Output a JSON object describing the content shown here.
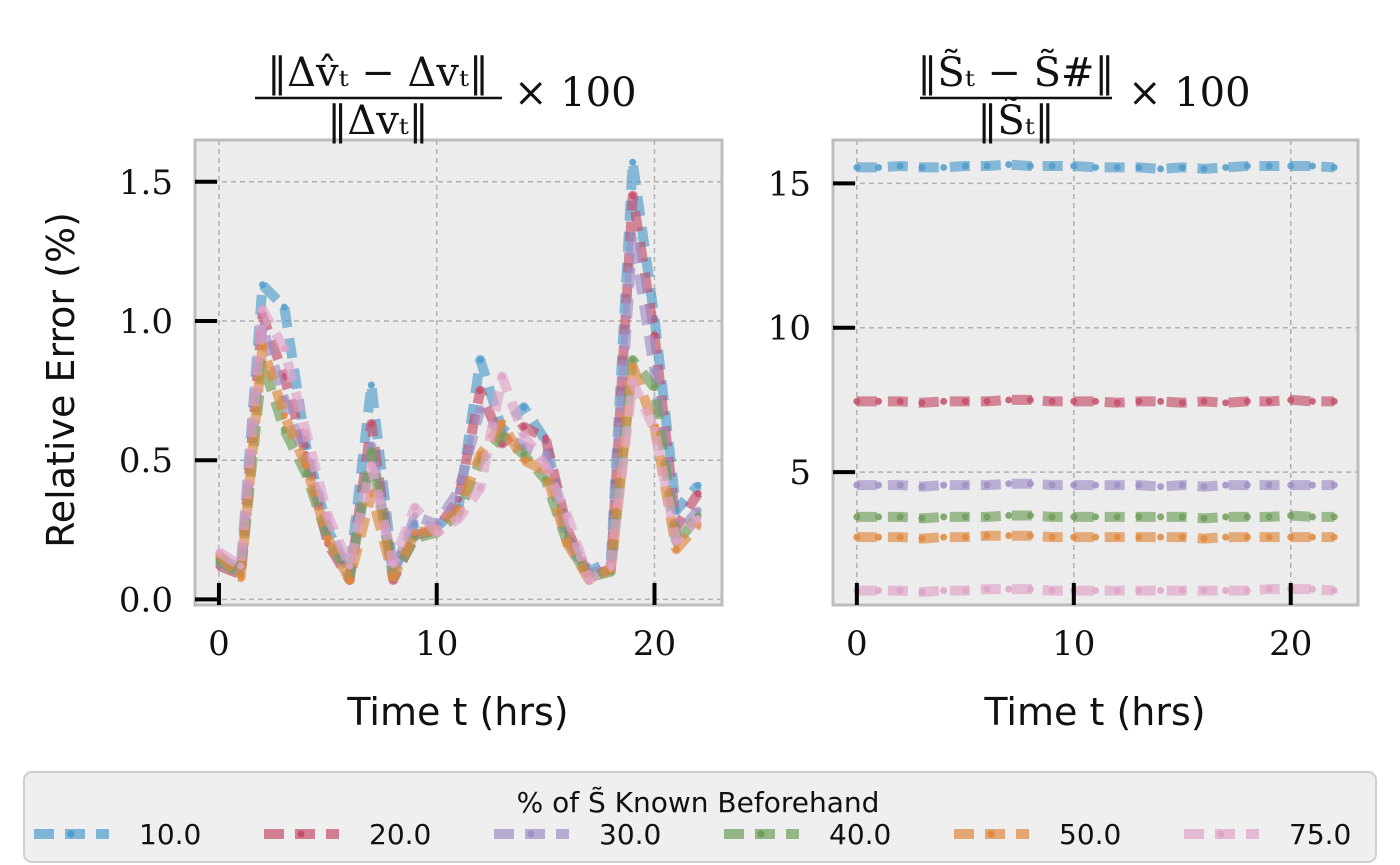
{
  "y_axis_label": "Relative Error (%)",
  "chart_data": [
    {
      "type": "line",
      "title": "‖Δv̂ₜ − Δvₜ‖ / ‖Δvₜ‖ × 100",
      "title_num": "‖Δv̂ₜ − Δvₜ‖",
      "title_den": "‖Δvₜ‖",
      "title_suffix": "× 100",
      "xlabel": "Time t (hrs)",
      "ylabel": "Relative Error (%)",
      "xlim": [
        -1.1,
        23.1
      ],
      "ylim": [
        -0.02,
        1.65
      ],
      "xticks": [
        0,
        10,
        20
      ],
      "yticks": [
        0.0,
        0.5,
        1.0,
        1.5
      ],
      "ytick_labels": [
        "0.0",
        "0.5",
        "1.0",
        "1.5"
      ],
      "xtick_labels": [
        "0",
        "10",
        "20"
      ],
      "grid": true,
      "x": [
        0,
        1,
        2,
        3,
        4,
        5,
        6,
        7,
        8,
        9,
        10,
        11,
        12,
        13,
        14,
        15,
        16,
        17,
        18,
        19,
        20,
        21,
        22
      ],
      "series": [
        {
          "name": "10.0",
          "color": "#4f9bcb",
          "values": [
            0.15,
            0.11,
            1.13,
            1.05,
            0.55,
            0.25,
            0.1,
            0.77,
            0.1,
            0.27,
            0.26,
            0.33,
            0.86,
            0.61,
            0.69,
            0.57,
            0.22,
            0.1,
            0.14,
            1.57,
            1.01,
            0.32,
            0.41
          ]
        },
        {
          "name": "20.0",
          "color": "#c44e6a",
          "values": [
            0.12,
            0.09,
            1.02,
            0.8,
            0.52,
            0.2,
            0.07,
            0.63,
            0.07,
            0.23,
            0.25,
            0.36,
            0.75,
            0.56,
            0.62,
            0.58,
            0.25,
            0.08,
            0.11,
            1.45,
            0.95,
            0.26,
            0.38
          ]
        },
        {
          "name": "30.0",
          "color": "#9f8fc4",
          "values": [
            0.13,
            0.1,
            0.98,
            0.72,
            0.5,
            0.27,
            0.08,
            0.55,
            0.09,
            0.3,
            0.27,
            0.39,
            0.68,
            0.59,
            0.55,
            0.52,
            0.21,
            0.09,
            0.12,
            1.31,
            0.82,
            0.23,
            0.32
          ]
        },
        {
          "name": "40.0",
          "color": "#6e9e5a",
          "values": [
            0.14,
            0.09,
            0.85,
            0.61,
            0.45,
            0.22,
            0.08,
            0.53,
            0.08,
            0.22,
            0.24,
            0.31,
            0.5,
            0.59,
            0.52,
            0.43,
            0.2,
            0.08,
            0.1,
            0.86,
            0.76,
            0.2,
            0.3
          ]
        },
        {
          "name": "50.0",
          "color": "#e0883d",
          "values": [
            0.16,
            0.08,
            0.91,
            0.66,
            0.48,
            0.22,
            0.07,
            0.38,
            0.08,
            0.24,
            0.25,
            0.32,
            0.52,
            0.63,
            0.5,
            0.46,
            0.2,
            0.07,
            0.11,
            0.84,
            0.62,
            0.18,
            0.27
          ]
        },
        {
          "name": "75.0",
          "color": "#e0a3c8",
          "values": [
            0.17,
            0.12,
            1.04,
            0.9,
            0.6,
            0.3,
            0.12,
            0.48,
            0.13,
            0.33,
            0.24,
            0.29,
            0.4,
            0.8,
            0.59,
            0.48,
            0.3,
            0.07,
            0.12,
            0.78,
            0.61,
            0.21,
            0.29
          ]
        }
      ]
    },
    {
      "type": "line",
      "title": "‖S̃ₜ − S̃#‖ / ‖S̃ₜ‖ × 100",
      "title_num": "‖S̃ₜ − S̃#‖",
      "title_den": "‖S̃ₜ‖",
      "title_suffix": "× 100",
      "xlabel": "Time t (hrs)",
      "xlim": [
        -1.1,
        23.1
      ],
      "ylim": [
        0.4,
        16.5
      ],
      "xticks": [
        0,
        10,
        20
      ],
      "yticks": [
        5,
        10,
        15
      ],
      "ytick_labels": [
        "5",
        "10",
        "15"
      ],
      "xtick_labels": [
        "0",
        "10",
        "20"
      ],
      "grid": true,
      "x": [
        0,
        1,
        2,
        3,
        4,
        5,
        6,
        7,
        8,
        9,
        10,
        11,
        12,
        13,
        14,
        15,
        16,
        17,
        18,
        19,
        20,
        21,
        22
      ],
      "series": [
        {
          "name": "10.0",
          "color": "#4f9bcb",
          "values": [
            15.55,
            15.55,
            15.6,
            15.55,
            15.55,
            15.6,
            15.6,
            15.65,
            15.6,
            15.6,
            15.6,
            15.55,
            15.55,
            15.55,
            15.5,
            15.55,
            15.5,
            15.55,
            15.6,
            15.6,
            15.6,
            15.6,
            15.55
          ]
        },
        {
          "name": "20.0",
          "color": "#c44e6a",
          "values": [
            7.45,
            7.45,
            7.45,
            7.4,
            7.45,
            7.45,
            7.45,
            7.5,
            7.5,
            7.45,
            7.45,
            7.45,
            7.4,
            7.45,
            7.45,
            7.4,
            7.45,
            7.4,
            7.45,
            7.45,
            7.5,
            7.45,
            7.45
          ]
        },
        {
          "name": "30.0",
          "color": "#9f8fc4",
          "values": [
            4.55,
            4.55,
            4.55,
            4.5,
            4.55,
            4.55,
            4.55,
            4.6,
            4.6,
            4.55,
            4.55,
            4.55,
            4.55,
            4.55,
            4.5,
            4.55,
            4.5,
            4.55,
            4.55,
            4.55,
            4.55,
            4.55,
            4.55
          ]
        },
        {
          "name": "40.0",
          "color": "#6e9e5a",
          "values": [
            3.45,
            3.45,
            3.45,
            3.4,
            3.45,
            3.45,
            3.45,
            3.5,
            3.5,
            3.45,
            3.45,
            3.45,
            3.45,
            3.45,
            3.45,
            3.45,
            3.4,
            3.45,
            3.45,
            3.45,
            3.5,
            3.45,
            3.45
          ]
        },
        {
          "name": "50.0",
          "color": "#e0883d",
          "values": [
            2.75,
            2.75,
            2.75,
            2.7,
            2.75,
            2.75,
            2.8,
            2.8,
            2.8,
            2.75,
            2.75,
            2.75,
            2.75,
            2.75,
            2.75,
            2.75,
            2.7,
            2.75,
            2.75,
            2.75,
            2.75,
            2.75,
            2.75
          ]
        },
        {
          "name": "75.0",
          "color": "#e0a3c8",
          "values": [
            0.9,
            0.9,
            0.9,
            0.85,
            0.9,
            0.9,
            0.95,
            0.95,
            0.95,
            0.9,
            0.9,
            0.9,
            0.9,
            0.9,
            0.9,
            0.9,
            0.9,
            0.9,
            0.9,
            0.95,
            0.95,
            0.95,
            0.9
          ]
        }
      ]
    }
  ],
  "legend": {
    "title": "% of S̃ Known Beforehand",
    "placement": "bottom",
    "entries": [
      {
        "label": "10.0",
        "color": "#4f9bcb"
      },
      {
        "label": "20.0",
        "color": "#c44e6a"
      },
      {
        "label": "30.0",
        "color": "#9f8fc4"
      },
      {
        "label": "40.0",
        "color": "#6e9e5a"
      },
      {
        "label": "50.0",
        "color": "#e0883d"
      },
      {
        "label": "75.0",
        "color": "#e0a3c8"
      }
    ]
  }
}
